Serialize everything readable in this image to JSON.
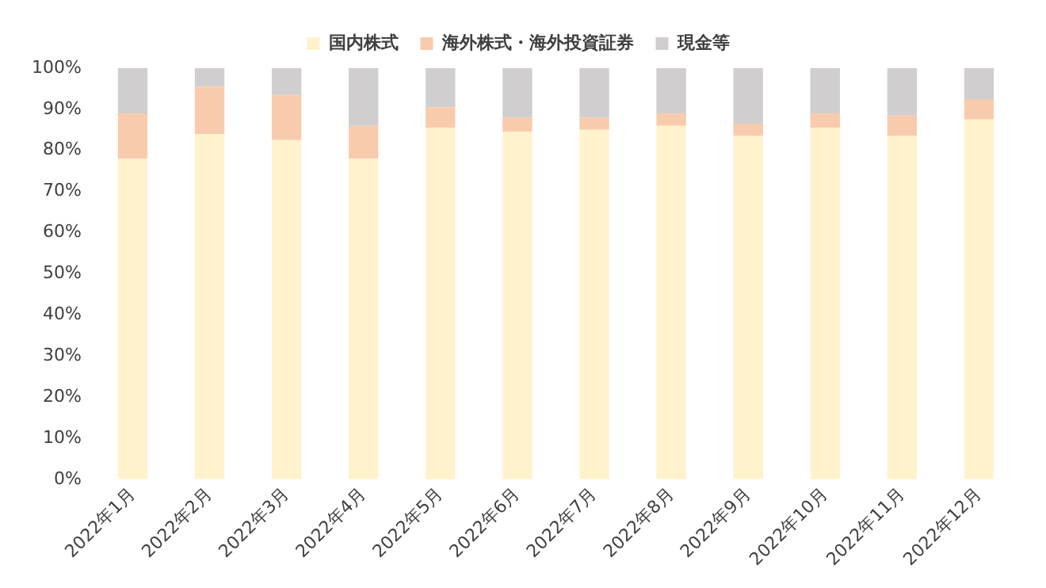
{
  "chart_data": {
    "type": "bar",
    "stacked": true,
    "categories": [
      "2022年1月",
      "2022年2月",
      "2022年3月",
      "2022年4月",
      "2022年5月",
      "2022年6月",
      "2022年7月",
      "2022年8月",
      "2022年9月",
      "2022年10月",
      "2022年11月",
      "2022年12月"
    ],
    "series": [
      {
        "name": "国内株式",
        "color": "#fff2cc",
        "values": [
          78,
          84,
          82.5,
          78,
          85.5,
          84.5,
          85,
          86,
          83.5,
          85.5,
          83.5,
          87.5
        ]
      },
      {
        "name": "海外株式・海外投資証券",
        "color": "#f8cbad",
        "values": [
          11,
          11.5,
          11,
          8,
          5,
          3.5,
          3,
          3,
          3,
          3.5,
          5,
          5
        ]
      },
      {
        "name": "現金等",
        "color": "#d0cece",
        "values": [
          11,
          4.5,
          6.5,
          14,
          9.5,
          12,
          12,
          11,
          13.5,
          11,
          11.5,
          7.5
        ]
      }
    ],
    "ylim": [
      0,
      100
    ],
    "yticks": [
      {
        "value": 0,
        "label": "0%"
      },
      {
        "value": 10,
        "label": "10%"
      },
      {
        "value": 20,
        "label": "20%"
      },
      {
        "value": 30,
        "label": "30%"
      },
      {
        "value": 40,
        "label": "40%"
      },
      {
        "value": 50,
        "label": "50%"
      },
      {
        "value": 60,
        "label": "60%"
      },
      {
        "value": 70,
        "label": "70%"
      },
      {
        "value": 80,
        "label": "80%"
      },
      {
        "value": 90,
        "label": "90%"
      },
      {
        "value": 100,
        "label": "100%"
      }
    ],
    "legend": "top"
  }
}
